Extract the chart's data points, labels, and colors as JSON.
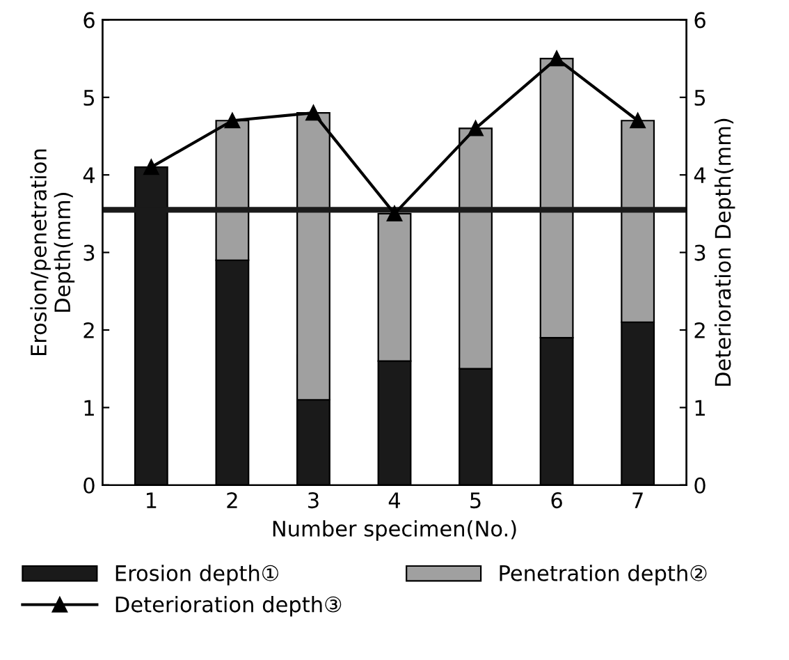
{
  "chart_data": {
    "type": "bar",
    "stacked": true,
    "xlabel": "Number specimen(No.)",
    "ylabel": "Erosion/penetration\nDepth(mm)",
    "y2label": "Deterioration Depth(mm)",
    "categories": [
      "1",
      "2",
      "3",
      "4",
      "5",
      "6",
      "7"
    ],
    "series": [
      {
        "name": "Erosion depth①",
        "color": "#1a1a1a",
        "values": [
          4.1,
          2.9,
          1.1,
          1.6,
          1.5,
          1.9,
          2.1
        ]
      },
      {
        "name": "Penetration depth②",
        "color": "#a0a0a0",
        "values": [
          null,
          1.8,
          3.7,
          1.9,
          3.1,
          3.6,
          2.6
        ]
      },
      {
        "name": "Deterioration depth③",
        "type": "line",
        "color": "#000000",
        "marker": "triangle",
        "values": [
          4.1,
          4.7,
          4.8,
          3.5,
          4.6,
          5.5,
          4.7
        ]
      }
    ],
    "ylim": [
      0,
      6
    ],
    "yticks": [
      0,
      1,
      2,
      3,
      4,
      5,
      6
    ],
    "y2lim": [
      0,
      6
    ],
    "y2ticks": [
      0,
      1,
      2,
      3,
      4,
      5,
      6
    ],
    "ref_lines": [
      {
        "axis": "y",
        "value": 3.55,
        "color": "#1a1a1a"
      }
    ],
    "grid": false,
    "legend": "bottom"
  }
}
